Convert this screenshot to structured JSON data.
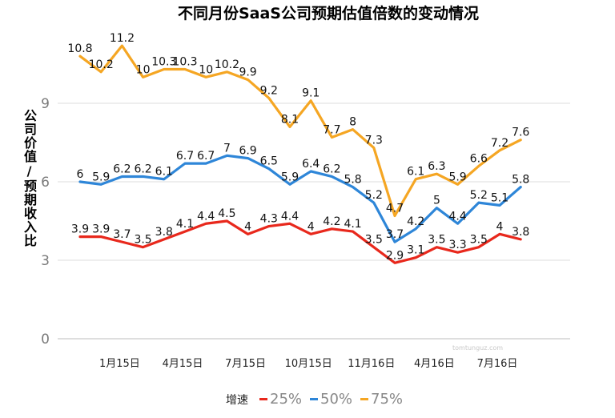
{
  "chart_data": {
    "type": "line",
    "title": "不同月份SaaS公司预期估值倍数的变动情况",
    "ylabel": "公司价值/预期收入比",
    "xlabel": "",
    "ylim": [
      0,
      12
    ],
    "yticks": [
      0,
      3,
      6,
      9
    ],
    "grid": true,
    "legend_position": "bottom",
    "legend_title": "增速",
    "x_tick_labels": [
      {
        "index": 2,
        "label": "1月15日"
      },
      {
        "index": 5,
        "label": "4月15日"
      },
      {
        "index": 8,
        "label": "7月15日"
      },
      {
        "index": 11,
        "label": "10月15日"
      },
      {
        "index": 14,
        "label": "11月16日"
      },
      {
        "index": 17,
        "label": "4月16日"
      },
      {
        "index": 20,
        "label": "7月16日"
      }
    ],
    "series": [
      {
        "name": "25%",
        "color": "#e8281c",
        "values": [
          3.9,
          3.9,
          3.7,
          3.5,
          3.8,
          4.1,
          4.4,
          4.5,
          4.0,
          4.3,
          4.4,
          4.0,
          4.2,
          4.1,
          3.5,
          2.9,
          3.1,
          3.5,
          3.3,
          3.5,
          4.0,
          3.8
        ]
      },
      {
        "name": "50%",
        "color": "#2e86d8",
        "values": [
          6.0,
          5.9,
          6.2,
          6.2,
          6.1,
          6.7,
          6.7,
          7.0,
          6.9,
          6.5,
          5.9,
          6.4,
          6.2,
          5.8,
          5.2,
          3.7,
          4.2,
          5.0,
          4.4,
          5.2,
          5.1,
          5.8
        ]
      },
      {
        "name": "75%",
        "color": "#f5a623",
        "values": [
          10.8,
          10.2,
          11.2,
          10.0,
          10.3,
          10.3,
          10.0,
          10.2,
          9.9,
          9.2,
          8.1,
          9.1,
          7.7,
          8.0,
          7.3,
          4.7,
          6.1,
          6.3,
          5.9,
          6.6,
          7.2,
          7.6
        ]
      }
    ]
  },
  "watermark": "tomtunguz.com"
}
